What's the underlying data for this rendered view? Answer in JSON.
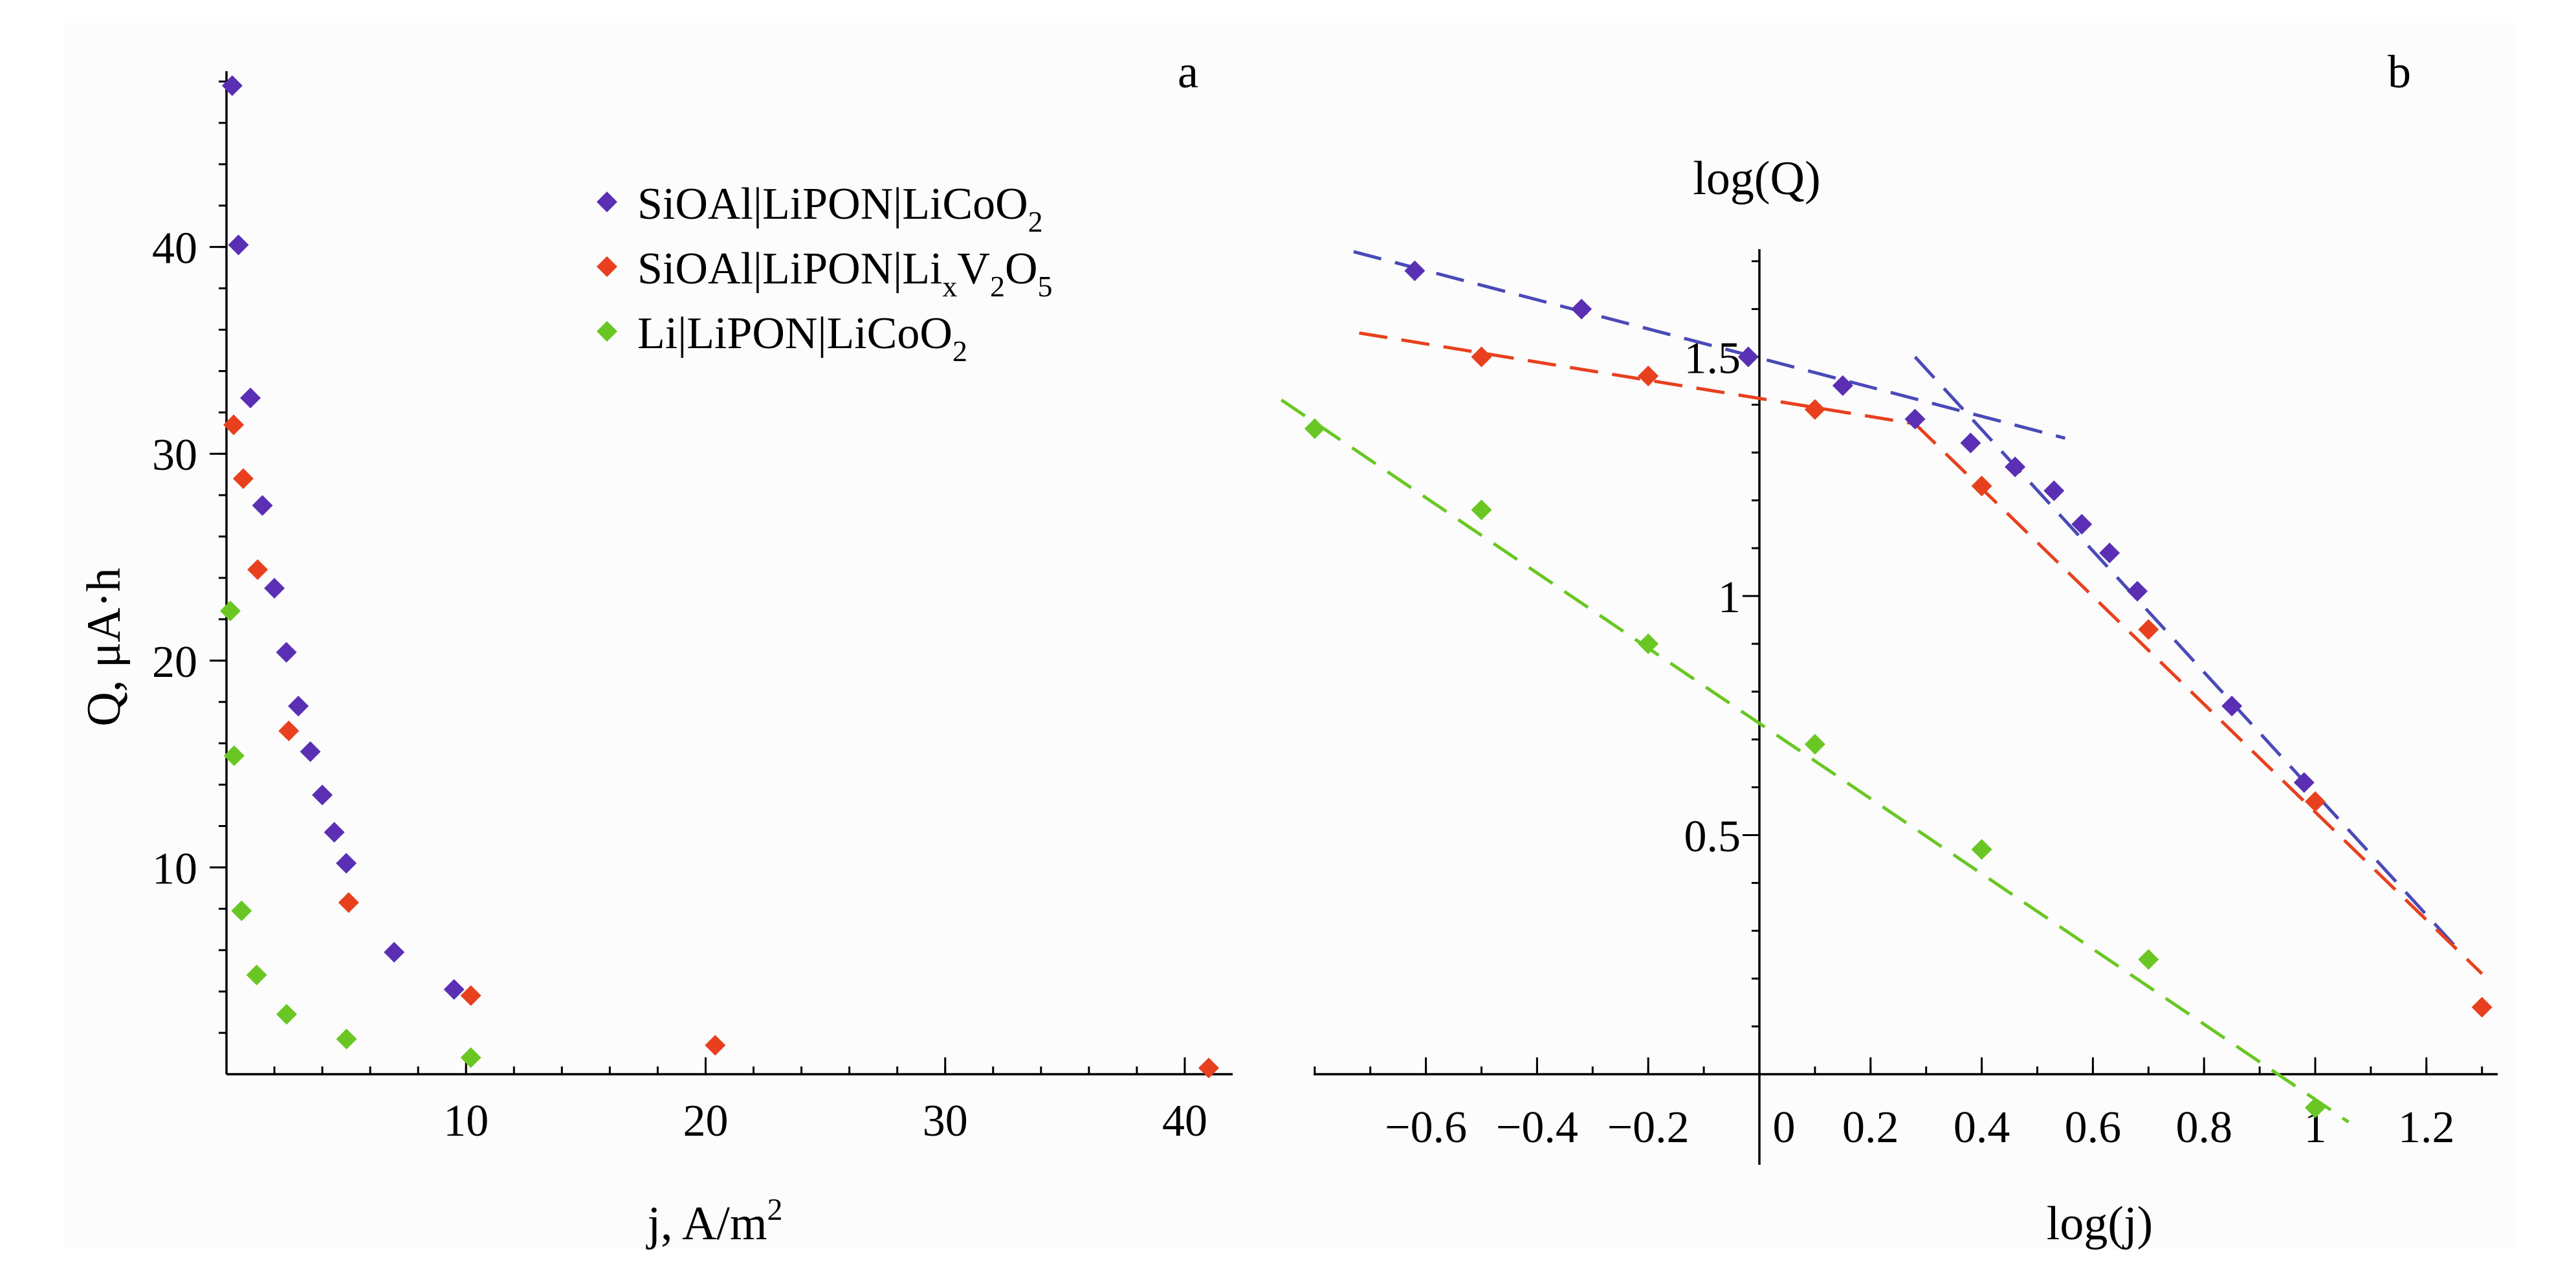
{
  "chart_data": [
    {
      "type": "scatter",
      "panel_label": "a",
      "xlabel_main": "j, A/m",
      "xlabel_sup": "2",
      "ylabel": "Q, μA·h",
      "xlim": [
        0,
        42
      ],
      "ylim": [
        0,
        48.5
      ],
      "xticks": [
        10,
        20,
        30,
        40
      ],
      "yticks": [
        10,
        20,
        30,
        40
      ],
      "x_minor_step": 2,
      "y_minor_step": 2,
      "legend_position": "top-center",
      "series": [
        {
          "name": "SiOAl|LiPON|LiCoO2",
          "legend": {
            "main": "SiOAl|LiPON|LiCoO",
            "sub": "2"
          },
          "color": "#5a2fb4",
          "x": [
            0.24,
            0.5,
            1.0,
            1.5,
            2.0,
            2.5,
            3.0,
            3.5,
            4.0,
            4.5,
            5.0,
            7.0,
            9.5
          ],
          "y": [
            47.8,
            40.1,
            32.7,
            27.5,
            23.5,
            20.4,
            17.8,
            15.6,
            13.5,
            11.7,
            10.2,
            5.9,
            4.1
          ]
        },
        {
          "name": "SiOAl|LiPON|LixV2O5",
          "legend": {
            "main": "SiOAl|LiPON|Li",
            "sub": "x",
            "main2": "V",
            "sub2": "2",
            "main3": "O",
            "sub3": "5"
          },
          "color": "#e8401e",
          "x": [
            0.3,
            0.7,
            1.3,
            2.6,
            5.1,
            10.2,
            20.4,
            41.0
          ],
          "y": [
            31.4,
            28.8,
            24.4,
            16.6,
            8.3,
            3.8,
            1.4,
            0.3
          ]
        },
        {
          "name": "Li|LiPON|LiCoO2",
          "legend": {
            "main": "Li|LiPON|LiCoO",
            "sub": "2"
          },
          "color": "#6ac723",
          "x": [
            0.16,
            0.32,
            0.63,
            1.26,
            2.51,
            5.01,
            10.2
          ],
          "y": [
            22.4,
            15.4,
            7.9,
            4.8,
            2.9,
            1.7,
            0.8
          ]
        }
      ]
    },
    {
      "type": "scatter",
      "panel_label": "b",
      "xlabel": "log(j)",
      "ylabel": "log(Q)",
      "xlim": [
        -0.8,
        1.3
      ],
      "ylim": [
        -0.15,
        1.72
      ],
      "xtick_labels": [
        "−0.6",
        "−0.4",
        "−0.2",
        "0",
        "0.2",
        "0.4",
        "0.6",
        "0.8",
        "1",
        "1.2"
      ],
      "xtick_values": [
        -0.6,
        -0.4,
        -0.2,
        0,
        0.2,
        0.4,
        0.6,
        0.8,
        1,
        1.2
      ],
      "ytick_labels": [
        "0.5",
        "1",
        "1.5"
      ],
      "ytick_values": [
        0.5,
        1,
        1.5
      ],
      "x_minor_step": 0.1,
      "y_minor_step": 0.1,
      "series": [
        {
          "name": "SiOAl|LiPON|LiCoO2",
          "color": "#5a2fb4",
          "x": [
            -0.62,
            -0.32,
            -0.02,
            0.15,
            0.28,
            0.38,
            0.46,
            0.53,
            0.58,
            0.63,
            0.68,
            0.85,
            0.98
          ],
          "y": [
            1.68,
            1.6,
            1.5,
            1.44,
            1.37,
            1.32,
            1.27,
            1.22,
            1.15,
            1.09,
            1.01,
            0.77,
            0.61
          ]
        },
        {
          "name": "SiOAl|LiPON|LixV2O5",
          "color": "#e8401e",
          "x": [
            -0.5,
            -0.2,
            0.1,
            0.4,
            0.7,
            1.0,
            1.3
          ],
          "y": [
            1.5,
            1.46,
            1.39,
            1.23,
            0.93,
            0.57,
            0.14
          ]
        },
        {
          "name": "Li|LiPON|LiCoO2",
          "color": "#6ac723",
          "x": [
            -0.8,
            -0.5,
            -0.2,
            0.1,
            0.4,
            0.7,
            1.0
          ],
          "y": [
            1.35,
            1.18,
            0.9,
            0.69,
            0.47,
            0.24,
            -0.07
          ]
        }
      ],
      "fit_lines": [
        {
          "series": "SiOAl|LiPON|LiCoO2",
          "color": "#4a4ab8",
          "x": [
            -0.73,
            0.55
          ],
          "y": [
            1.72,
            1.33
          ]
        },
        {
          "series": "SiOAl|LiPON|LiCoO2",
          "color": "#4a4ab8",
          "x": [
            0.28,
            1.25
          ],
          "y": [
            1.5,
            0.27
          ]
        },
        {
          "series": "SiOAl|LiPON|LixV2O5",
          "color": "#e8401e",
          "x": [
            -0.72,
            0.28
          ],
          "y": [
            1.55,
            1.36
          ]
        },
        {
          "series": "SiOAl|LiPON|LixV2O5",
          "color": "#e8401e",
          "x": [
            0.28,
            1.3
          ],
          "y": [
            1.36,
            0.21
          ]
        },
        {
          "series": "Li|LiPON|LiCoO2",
          "color": "#6ac723",
          "x": [
            -0.86,
            1.06
          ],
          "y": [
            1.41,
            -0.1
          ]
        }
      ]
    }
  ]
}
